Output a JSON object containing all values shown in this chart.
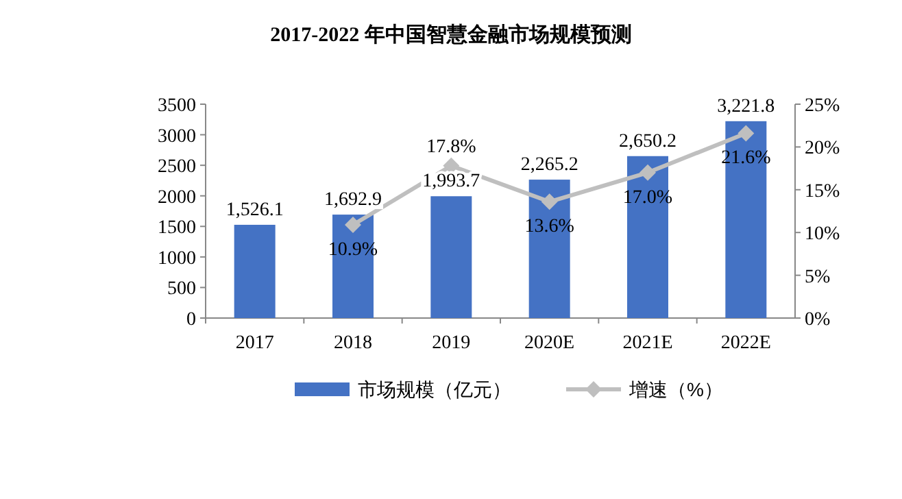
{
  "chart_data": {
    "type": "bar",
    "title": "2017-2022 年中国智慧金融市场规模预测",
    "categories": [
      "2017",
      "2018",
      "2019",
      "2020E",
      "2021E",
      "2022E"
    ],
    "series": [
      {
        "name": "市场规模（亿元）",
        "color": "#4472c4",
        "values": [
          1526.1,
          1692.9,
          1993.7,
          2265.2,
          2650.2,
          3221.8
        ],
        "value_labels": [
          "1,526.1",
          "1,692.9",
          "1,993.7",
          "2,265.2",
          "2,650.2",
          "3,221.8"
        ]
      },
      {
        "name": "增速（%）",
        "type": "line",
        "axis": "y2",
        "color": "#bfbfbf",
        "marker": "diamond",
        "values": [
          null,
          10.9,
          17.8,
          13.6,
          17.0,
          21.6
        ],
        "value_labels": [
          null,
          "10.9%",
          "17.8%",
          "13.6%",
          "17.0%",
          "21.6%"
        ]
      }
    ],
    "ylim": [
      0,
      3500
    ],
    "yticks": [
      0,
      500,
      1000,
      1500,
      2000,
      2500,
      3000,
      3500
    ],
    "y2lim": [
      0,
      25
    ],
    "y2ticks": [
      {
        "value": 0,
        "label": "0%"
      },
      {
        "value": 5,
        "label": "5%"
      },
      {
        "value": 10,
        "label": "10%"
      },
      {
        "value": 15,
        "label": "15%"
      },
      {
        "value": 20,
        "label": "20%"
      },
      {
        "value": 25,
        "label": "25%"
      }
    ],
    "grid": false,
    "legend": "bottom"
  }
}
